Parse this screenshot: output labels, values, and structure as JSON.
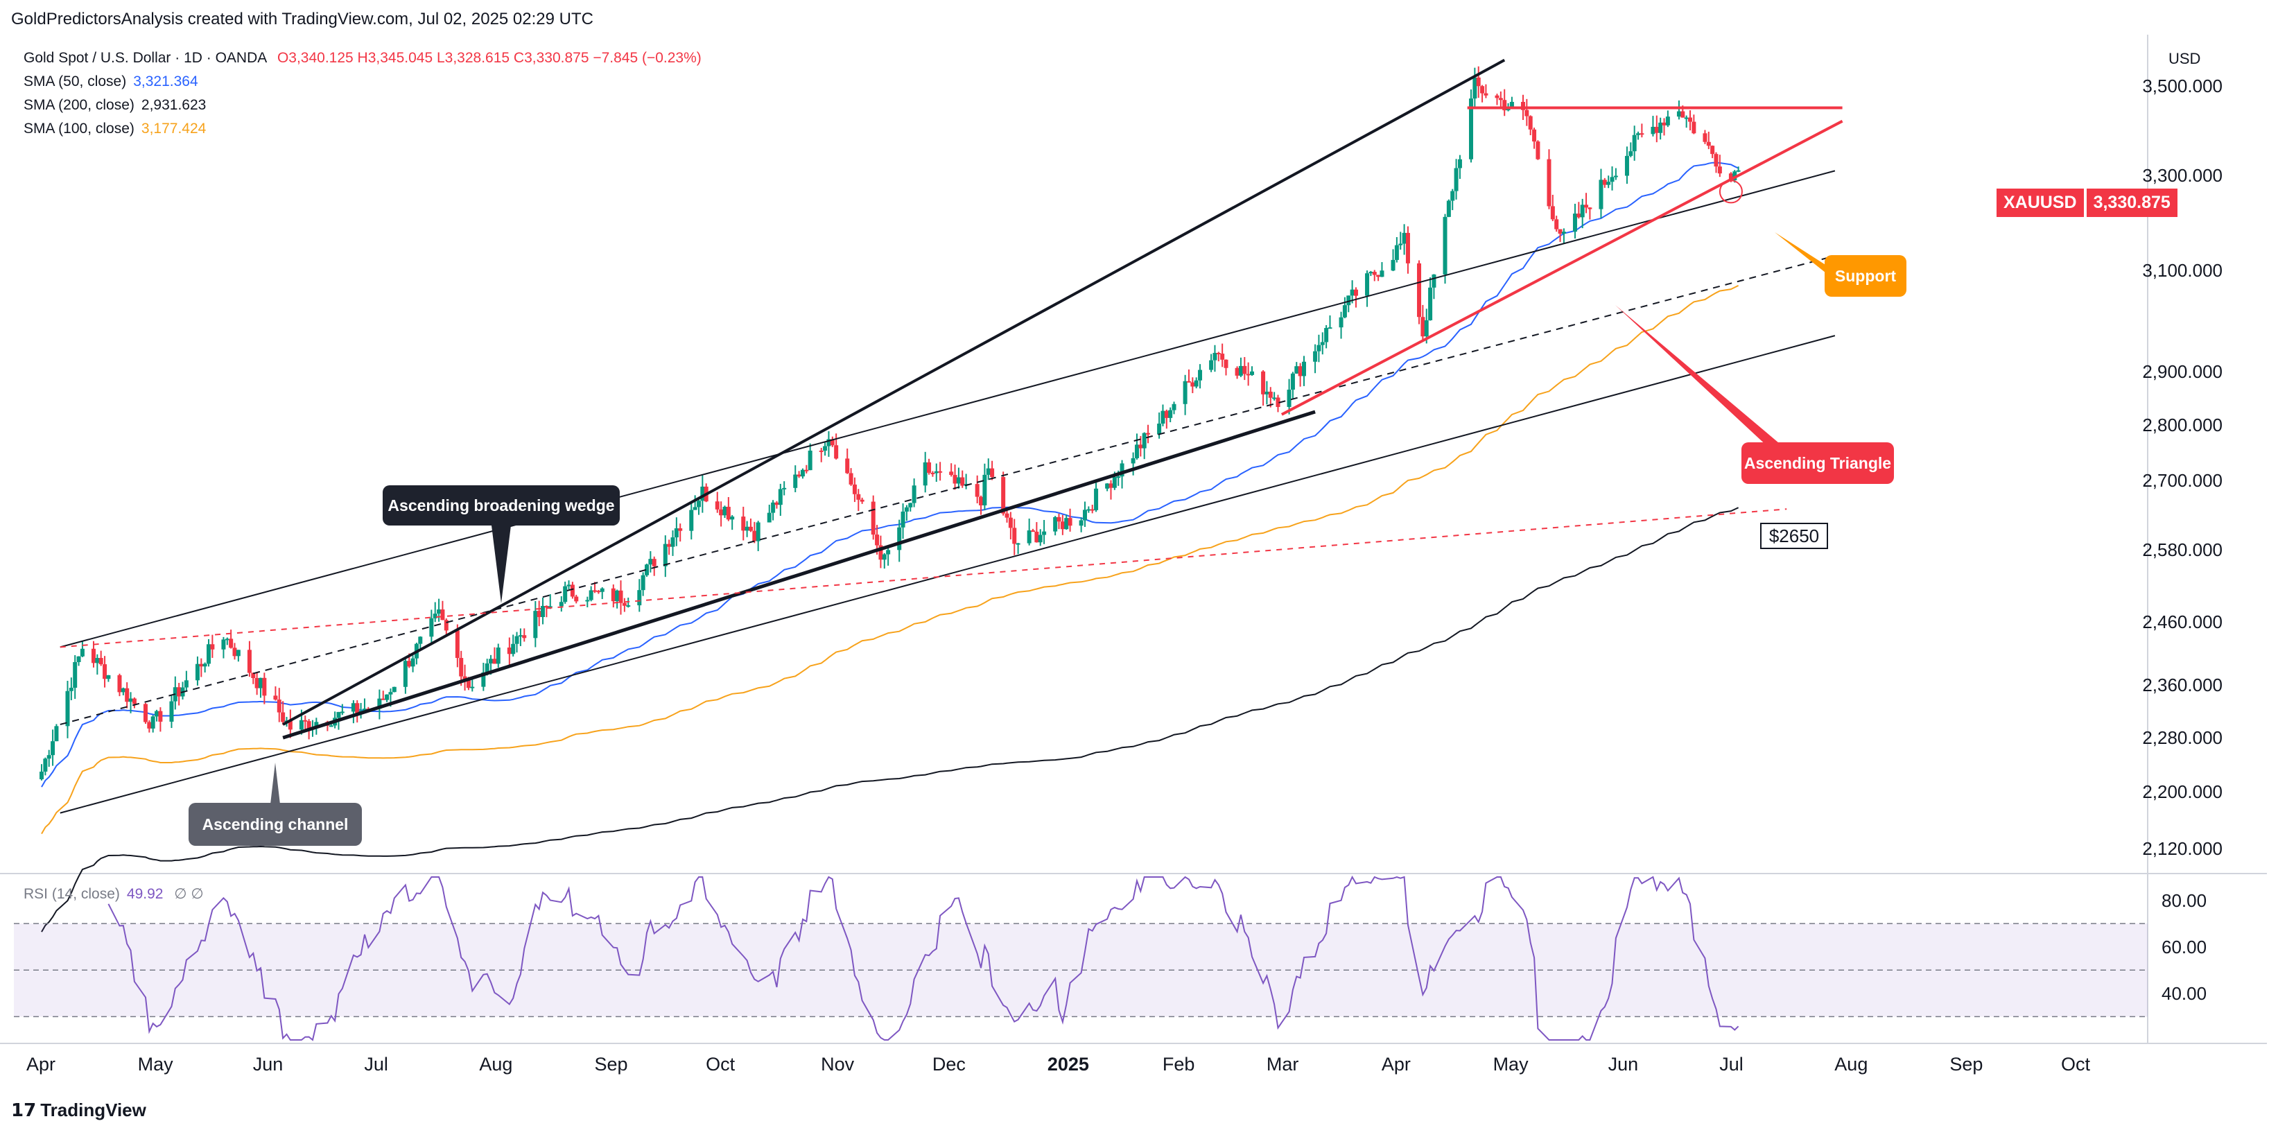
{
  "header": {
    "credit": "GoldPredictorsAnalysis created with TradingView.com, Jul 02, 2025 02:29 UTC"
  },
  "legend": {
    "symbol": "Gold Spot / U.S. Dollar · 1D · OANDA",
    "ohlc": "O3,340.125  H3,345.045  L3,328.615  C3,330.875  −7.845 (−0.23%)",
    "sma50_label": "SMA (50, close)",
    "sma50_value": "3,321.364",
    "sma200_label": "SMA (200, close)",
    "sma200_value": "2,931.623",
    "sma100_label": "SMA (100, close)",
    "sma100_value": "3,177.424",
    "rsi_label": "RSI (14, close)",
    "rsi_value": "49.92",
    "rsi_extra": "∅  ∅"
  },
  "axis": {
    "currency": "USD",
    "price_ticks": [
      "3,500.000",
      "3,300.000",
      "3,100.000",
      "2,900.000",
      "2,800.000",
      "2,700.000",
      "2,580.000",
      "2,460.000",
      "2,360.000",
      "2,280.000",
      "2,200.000",
      "2,120.000"
    ],
    "rsi_ticks": [
      "80.00",
      "60.00",
      "40.00"
    ],
    "months": [
      "Apr",
      "May",
      "Jun",
      "Jul",
      "Aug",
      "Sep",
      "Oct",
      "Nov",
      "Dec",
      "2025",
      "Feb",
      "Mar",
      "Apr",
      "May",
      "Jun",
      "Jul",
      "Aug",
      "Sep",
      "Oct"
    ]
  },
  "current": {
    "symbol": "XAUUSD",
    "price": "3,330.875"
  },
  "annotations": {
    "wedge": "Ascending broadening wedge",
    "channel": "Ascending channel",
    "triangle": "Ascending Triangle",
    "support": "Support",
    "level": "$2650"
  },
  "footer": {
    "brand": "TradingView"
  },
  "colors": {
    "up": "#089981",
    "down": "#f23645",
    "sma50": "#2962ff",
    "sma100": "#f7a21b",
    "sma200": "#131722",
    "rsi": "#7e57c2",
    "triangle": "#f23645"
  },
  "chart_data": {
    "type": "candlestick",
    "title": "Gold Spot / U.S. Dollar · 1D · OANDA",
    "x_range": [
      "2024-04-01",
      "2025-10-15"
    ],
    "y_range": [
      2090,
      3620
    ],
    "y_scale": "log",
    "key_points": [
      {
        "date": "2024-04-01",
        "price": 2230
      },
      {
        "date": "2024-04-12",
        "price": 2420
      },
      {
        "date": "2024-05-01",
        "price": 2300
      },
      {
        "date": "2024-05-20",
        "price": 2440
      },
      {
        "date": "2024-06-07",
        "price": 2295
      },
      {
        "date": "2024-07-01",
        "price": 2330
      },
      {
        "date": "2024-07-17",
        "price": 2470
      },
      {
        "date": "2024-07-25",
        "price": 2360
      },
      {
        "date": "2024-08-20",
        "price": 2510
      },
      {
        "date": "2024-09-06",
        "price": 2500
      },
      {
        "date": "2024-09-26",
        "price": 2680
      },
      {
        "date": "2024-10-10",
        "price": 2610
      },
      {
        "date": "2024-10-30",
        "price": 2785
      },
      {
        "date": "2024-11-14",
        "price": 2560
      },
      {
        "date": "2024-11-25",
        "price": 2720
      },
      {
        "date": "2024-12-10",
        "price": 2670
      },
      {
        "date": "2024-12-12",
        "price": 2720
      },
      {
        "date": "2024-12-19",
        "price": 2590
      },
      {
        "date": "2025-01-06",
        "price": 2640
      },
      {
        "date": "2025-01-24",
        "price": 2780
      },
      {
        "date": "2025-02-11",
        "price": 2940
      },
      {
        "date": "2025-02-28",
        "price": 2850
      },
      {
        "date": "2025-03-20",
        "price": 3045
      },
      {
        "date": "2025-04-03",
        "price": 3160
      },
      {
        "date": "2025-04-08",
        "price": 2975
      },
      {
        "date": "2025-04-22",
        "price": 3500
      },
      {
        "date": "2025-05-06",
        "price": 3430
      },
      {
        "date": "2025-05-15",
        "price": 3160
      },
      {
        "date": "2025-06-05",
        "price": 3380
      },
      {
        "date": "2025-06-16",
        "price": 3450
      },
      {
        "date": "2025-06-30",
        "price": 3290
      },
      {
        "date": "2025-07-02",
        "price": 3330.875
      }
    ],
    "last_ohlc": {
      "open": 3340.125,
      "high": 3345.045,
      "low": 3328.615,
      "close": 3330.875
    },
    "sma": {
      "sma50": 3321.364,
      "sma100": 3177.424,
      "sma200": 2931.623
    },
    "rsi": {
      "period": 14,
      "last": 49.92,
      "upper": 70,
      "middle": 50,
      "lower": 30,
      "ylim": [
        20,
        90
      ]
    },
    "levels": [
      2650
    ],
    "patterns": [
      "Ascending broadening wedge",
      "Ascending channel",
      "Ascending Triangle"
    ]
  }
}
